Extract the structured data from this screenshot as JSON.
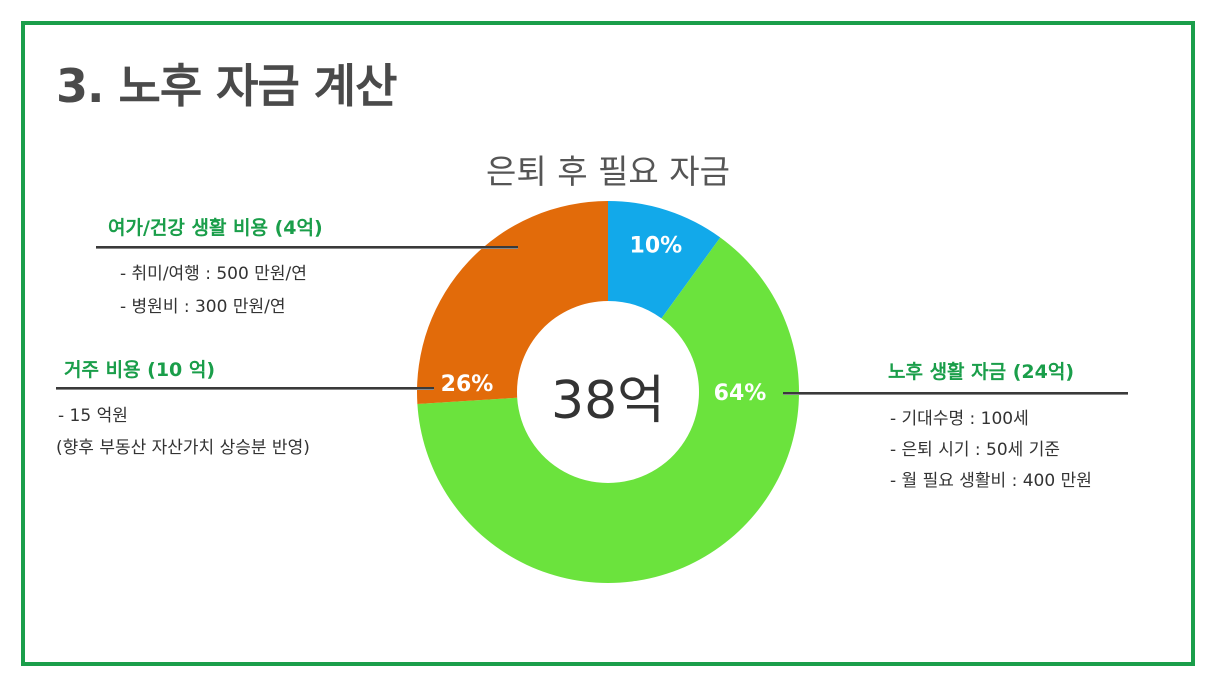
{
  "slide": {
    "title": "3. 노후 자금 계산"
  },
  "chart_data": {
    "type": "pie",
    "title": "은퇴 후 필요 자금",
    "center_label": "38억",
    "slices": [
      {
        "label": "10%",
        "value": 10,
        "color": "#12a9ea"
      },
      {
        "label": "64%",
        "value": 64,
        "color": "#6be33d"
      },
      {
        "label": "26%",
        "value": 26,
        "color": "#e26b0a"
      }
    ]
  },
  "categories": {
    "leisure": {
      "heading": "여가/건강 생활 비용 (4억)",
      "items": [
        "- 취미/여행 : 500 만원/연",
        "- 병원비 : 300 만원/연"
      ]
    },
    "housing": {
      "heading": "거주 비용 (10 억)",
      "items": [
        "- 15 억원",
        "(향후 부동산 자산가치 상승분 반영)"
      ]
    },
    "living": {
      "heading": "노후 생활 자금 (24억)",
      "items": [
        "- 기대수명 : 100세",
        "- 은퇴 시기 : 50세 기준",
        "- 월 필요 생활비 : 400 만원"
      ]
    }
  }
}
